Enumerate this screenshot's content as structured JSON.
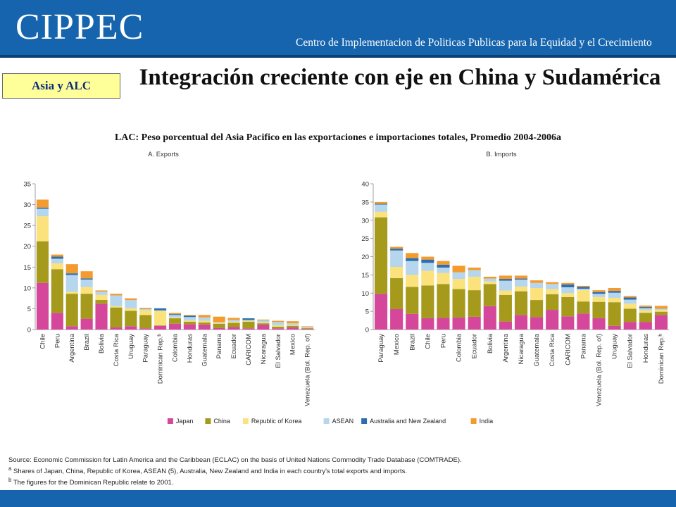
{
  "header": {
    "logo": "CIPPEC",
    "org_name": "Centro de Implementacion de Politicas Publicas para la Equidad y el Crecimiento"
  },
  "tag": "Asia y ALC",
  "title": "Integración  creciente con eje en China y Sudamérica",
  "subtitle": "LAC: Peso porcentual del Asia Pacifico en las exportaciones e importaciones totales, Promedio 2004-2006a",
  "notes": {
    "source": "Source: Economic Commission for Latin America and the Caribbean (ECLAC) on the basis of United Nations Commodity Trade Database (COMTRADE).",
    "note_a": "Shares of Japan, China, Republic of Korea, ASEAN (5), Australia, New Zealand and India in each country's total exports and imports.",
    "note_b": "The figures for the Dominican Republic relate to 2001."
  },
  "legend_position": "bottom-center",
  "colors": {
    "Japan": "#d5479b",
    "China": "#a59a1c",
    "Republic of Korea": "#fbe27c",
    "ASEAN": "#b6d6ee",
    "Australia and New Zealand": "#2d6fae",
    "India": "#f39b2f"
  },
  "chart_data": [
    {
      "type": "bar",
      "stacked": true,
      "title": "A. Exports",
      "ylim": [
        0,
        35
      ],
      "yticks": [
        0,
        5,
        10,
        15,
        20,
        25,
        30,
        35
      ],
      "grid": true,
      "categories": [
        "Chile",
        "Peru",
        "Argentina",
        "Brazil",
        "Bolivia",
        "Costa Rica",
        "Uruguay",
        "Paraguay",
        "Dominican Rep.ᵇ",
        "Colombia",
        "Honduras",
        "Guatemala",
        "Panama",
        "Ecuador",
        "CARICOM",
        "Nicaragua",
        "El Salvador",
        "Mexico",
        "Venezuela (Bol. Rep. of)"
      ],
      "series": [
        {
          "name": "Japan",
          "values": [
            11.2,
            4.0,
            0.8,
            2.6,
            6.2,
            0.5,
            0.8,
            0.3,
            0.9,
            1.4,
            1.3,
            1.2,
            0.4,
            0.6,
            0.3,
            1.1,
            0.3,
            0.5,
            0.2
          ]
        },
        {
          "name": "China",
          "values": [
            10.0,
            10.5,
            7.8,
            6.0,
            0.9,
            4.8,
            3.7,
            3.2,
            0.1,
            1.3,
            0.6,
            0.5,
            1.0,
            1.0,
            1.6,
            0.4,
            0.4,
            0.4,
            0.2
          ]
        },
        {
          "name": "Republic of Korea",
          "values": [
            6.0,
            1.4,
            0.5,
            1.6,
            1.2,
            0.3,
            0.6,
            1.1,
            3.5,
            0.2,
            0.3,
            0.4,
            0.2,
            0.3,
            0.2,
            0.2,
            0.3,
            0.2,
            0.1
          ]
        },
        {
          "name": "ASEAN",
          "values": [
            1.8,
            1.1,
            4.0,
            1.8,
            0.8,
            2.6,
            2.0,
            0.3,
            0.1,
            0.6,
            0.8,
            0.8,
            0.2,
            0.4,
            0.2,
            0.5,
            0.8,
            0.4,
            0.2
          ]
        },
        {
          "name": "Australia and New Zealand",
          "values": [
            0.3,
            0.5,
            0.4,
            0.3,
            0.0,
            0.0,
            0.0,
            0.0,
            0.5,
            0.2,
            0.3,
            0.0,
            0.0,
            0.0,
            0.4,
            0.0,
            0.0,
            0.0,
            0.0
          ]
        },
        {
          "name": "India",
          "values": [
            1.9,
            0.5,
            2.2,
            1.7,
            0.3,
            0.4,
            0.4,
            0.3,
            0.0,
            0.3,
            0.2,
            0.6,
            1.3,
            0.5,
            0.0,
            0.2,
            0.3,
            0.5,
            0.1
          ]
        }
      ]
    },
    {
      "type": "bar",
      "stacked": true,
      "title": "B. Imports",
      "ylim": [
        0,
        40
      ],
      "yticks": [
        0,
        5,
        10,
        15,
        20,
        25,
        30,
        35,
        40
      ],
      "grid": true,
      "categories": [
        "Paraguay",
        "Mexico",
        "Brazil",
        "Chile",
        "Peru",
        "Colombia",
        "Ecuador",
        "Bolivia",
        "Argentina",
        "Nicaragua",
        "Guatemala",
        "Costa Rica",
        "CARICOM",
        "Panama",
        "Venezuela (Bol. Rep. of)",
        "Uruguay",
        "El Salvador",
        "Honduras",
        "Dominican Rep.ᵇ"
      ],
      "series": [
        {
          "name": "Japan",
          "values": [
            9.8,
            5.6,
            4.3,
            3.1,
            3.2,
            3.3,
            3.5,
            6.4,
            2.2,
            4.0,
            3.4,
            5.4,
            3.6,
            4.4,
            3.1,
            1.0,
            2.1,
            2.1,
            4.0
          ]
        },
        {
          "name": "China",
          "values": [
            21.0,
            8.5,
            7.4,
            9.0,
            9.3,
            7.8,
            7.3,
            6.1,
            7.3,
            6.5,
            4.7,
            4.3,
            5.3,
            3.3,
            4.5,
            6.5,
            3.6,
            2.5,
            0.9
          ]
        },
        {
          "name": "Republic of Korea",
          "values": [
            1.5,
            3.1,
            3.3,
            4.0,
            3.0,
            2.8,
            3.7,
            0.7,
            1.2,
            1.3,
            3.3,
            1.4,
            1.1,
            3.1,
            1.3,
            1.2,
            1.4,
            0.7,
            0.5
          ]
        },
        {
          "name": "ASEAN",
          "values": [
            2.0,
            4.5,
            3.8,
            2.2,
            1.5,
            1.8,
            1.8,
            0.8,
            2.7,
            1.9,
            1.4,
            1.4,
            1.6,
            0.4,
            0.9,
            1.4,
            1.1,
            0.6,
            0.3
          ]
        },
        {
          "name": "Australia and New Zealand",
          "values": [
            0.2,
            0.5,
            0.8,
            0.9,
            0.8,
            0.0,
            0.0,
            0.0,
            0.5,
            0.3,
            0.0,
            0.0,
            0.8,
            0.5,
            0.5,
            0.5,
            0.6,
            0.3,
            0.0
          ]
        },
        {
          "name": "India",
          "values": [
            0.5,
            0.5,
            1.4,
            0.8,
            1.0,
            1.8,
            0.7,
            0.5,
            0.9,
            0.8,
            0.7,
            0.5,
            0.4,
            0.3,
            0.5,
            0.8,
            0.4,
            0.4,
            0.8
          ]
        }
      ]
    }
  ]
}
